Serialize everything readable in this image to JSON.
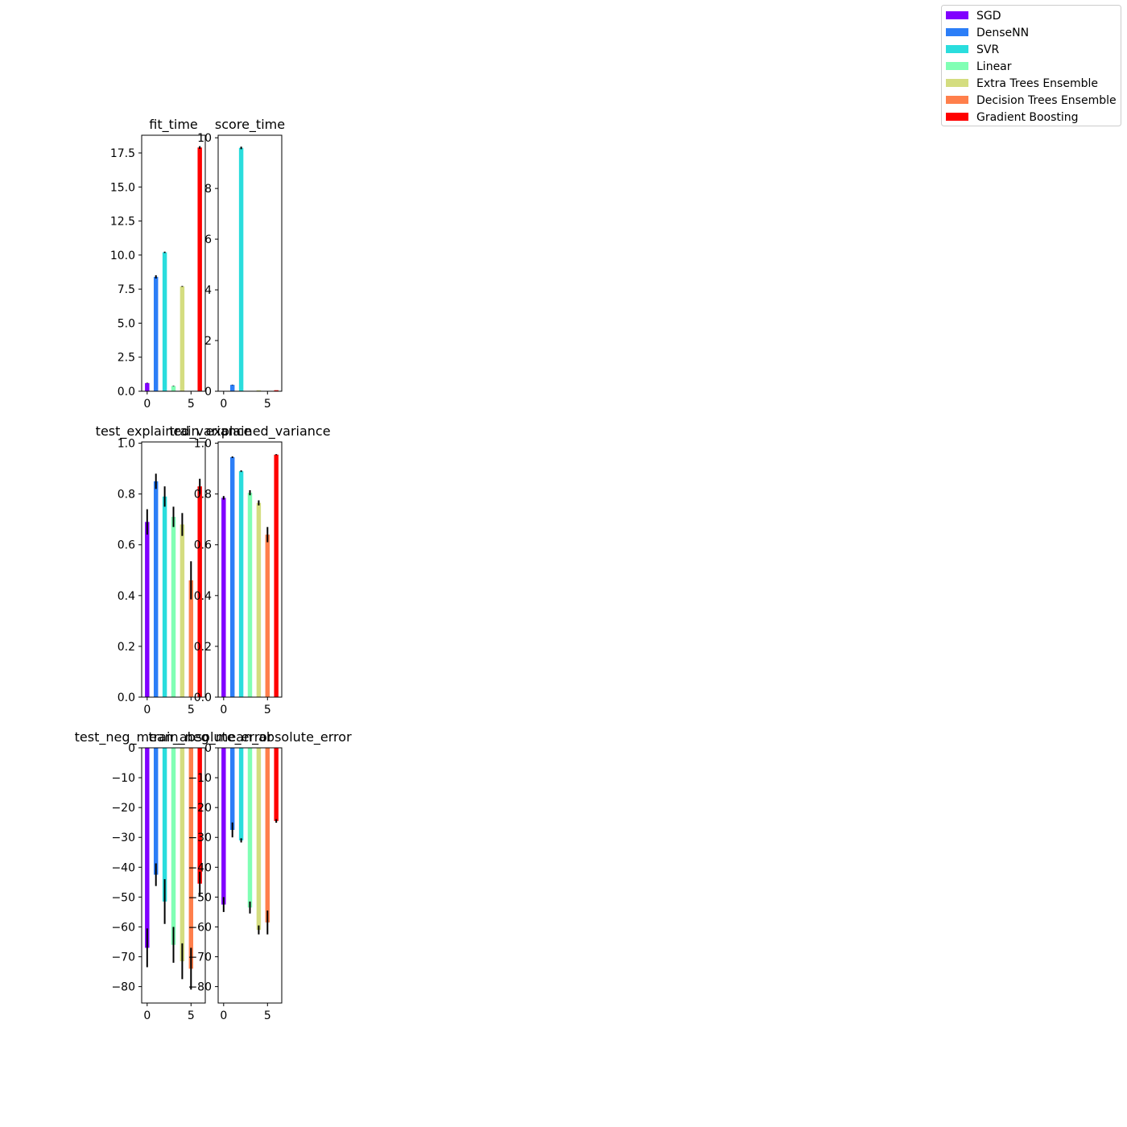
{
  "legend": [
    {
      "name": "SGD",
      "color": "#8000ff"
    },
    {
      "name": "DenseNN",
      "color": "#2c7ef7"
    },
    {
      "name": "SVR",
      "color": "#2adddd"
    },
    {
      "name": "Linear",
      "color": "#80ffb4"
    },
    {
      "name": "Extra Trees Ensemble",
      "color": "#d4dd80"
    },
    {
      "name": "Decision Trees Ensemble",
      "color": "#ff7f4b"
    },
    {
      "name": "Gradient Boosting",
      "color": "#ff0000"
    }
  ],
  "chart_data": [
    {
      "type": "bar",
      "title": "fit_time",
      "x": [
        0,
        1,
        2,
        3,
        4,
        5,
        6
      ],
      "values": [
        0.6,
        8.4,
        10.2,
        0.38,
        7.7,
        0.0,
        17.9
      ],
      "errors": [
        0.02,
        0.12,
        0.05,
        0.02,
        0.03,
        0.0,
        0.1
      ],
      "ylim": [
        0,
        18.8
      ],
      "yticks": [
        0,
        2.5,
        5,
        7.5,
        10,
        12.5,
        15,
        17.5
      ],
      "ytick_labels": [
        "0.0",
        "2.5",
        "5.0",
        "7.5",
        "10.0",
        "12.5",
        "15.0",
        "17.5"
      ],
      "xticks": [
        0,
        5
      ],
      "xtick_labels": [
        "0",
        "5"
      ]
    },
    {
      "type": "bar",
      "title": "score_time",
      "x": [
        0,
        1,
        2,
        3,
        4,
        5,
        6
      ],
      "values": [
        0.0,
        0.25,
        9.6,
        0.0,
        0.04,
        0.0,
        0.04
      ],
      "errors": [
        0.0,
        0.01,
        0.05,
        0.0,
        0.0,
        0.0,
        0.0
      ],
      "ylim": [
        0,
        10.1
      ],
      "yticks": [
        0,
        2,
        4,
        6,
        8,
        10
      ],
      "ytick_labels": [
        "0",
        "2",
        "4",
        "6",
        "8",
        "10"
      ],
      "xticks": [
        0,
        5
      ],
      "xtick_labels": [
        "0",
        "5"
      ]
    },
    {
      "type": "bar",
      "title": "test_explained_variance",
      "x": [
        0,
        1,
        2,
        3,
        4,
        5,
        6
      ],
      "values": [
        0.69,
        0.85,
        0.79,
        0.71,
        0.68,
        0.46,
        0.83
      ],
      "errors": [
        0.05,
        0.03,
        0.04,
        0.04,
        0.045,
        0.075,
        0.03
      ],
      "ylim": [
        0,
        1.005
      ],
      "yticks": [
        0,
        0.2,
        0.4,
        0.6,
        0.8,
        1.0
      ],
      "ytick_labels": [
        "0.0",
        "0.2",
        "0.4",
        "0.6",
        "0.8",
        "1.0"
      ],
      "xticks": [
        0,
        5
      ],
      "xtick_labels": [
        "0",
        "5"
      ]
    },
    {
      "type": "bar",
      "title": "train_explained_variance",
      "x": [
        0,
        1,
        2,
        3,
        4,
        5,
        6
      ],
      "values": [
        0.785,
        0.945,
        0.89,
        0.805,
        0.765,
        0.64,
        0.955
      ],
      "errors": [
        0.007,
        0.003,
        0.003,
        0.01,
        0.01,
        0.03,
        0.002
      ],
      "ylim": [
        0,
        1.005
      ],
      "yticks": [
        0,
        0.2,
        0.4,
        0.6,
        0.8,
        1.0
      ],
      "ytick_labels": [
        "0.0",
        "0.2",
        "0.4",
        "0.6",
        "0.8",
        "1.0"
      ],
      "xticks": [
        0,
        5
      ],
      "xtick_labels": [
        "0",
        "5"
      ]
    },
    {
      "type": "bar",
      "title": "test_neg_mean_absolute_error",
      "x": [
        0,
        1,
        2,
        3,
        4,
        5,
        6
      ],
      "values": [
        -67,
        -42.5,
        -51.5,
        -66,
        -71.5,
        -74,
        -45.5
      ],
      "errors": [
        6.5,
        3.8,
        7.5,
        6,
        6,
        7,
        4
      ],
      "ylim": [
        -85.5,
        0
      ],
      "yticks": [
        0,
        -10,
        -20,
        -30,
        -40,
        -50,
        -60,
        -70,
        -80
      ],
      "ytick_labels": [
        "0",
        "−10",
        "−20",
        "−30",
        "−40",
        "−50",
        "−60",
        "−70",
        "−80"
      ],
      "xticks": [
        0,
        5
      ],
      "xtick_labels": [
        "0",
        "5"
      ]
    },
    {
      "type": "bar",
      "title": "train_neg_mean_absolute_error",
      "x": [
        0,
        1,
        2,
        3,
        4,
        5,
        6
      ],
      "values": [
        -52.5,
        -27.5,
        -31,
        -53.5,
        -61,
        -58.5,
        -24.5
      ],
      "errors": [
        2.5,
        2.5,
        0.7,
        2,
        1.5,
        4,
        0.6
      ],
      "ylim": [
        -85.5,
        0
      ],
      "yticks": [
        0,
        -10,
        -20,
        -30,
        -40,
        -50,
        -60,
        -70,
        -80
      ],
      "ytick_labels": [
        "0",
        "−10",
        "−20",
        "−30",
        "−40",
        "−50",
        "−60",
        "−70",
        "−80"
      ],
      "xticks": [
        0,
        5
      ],
      "xtick_labels": [
        "0",
        "5"
      ]
    }
  ]
}
